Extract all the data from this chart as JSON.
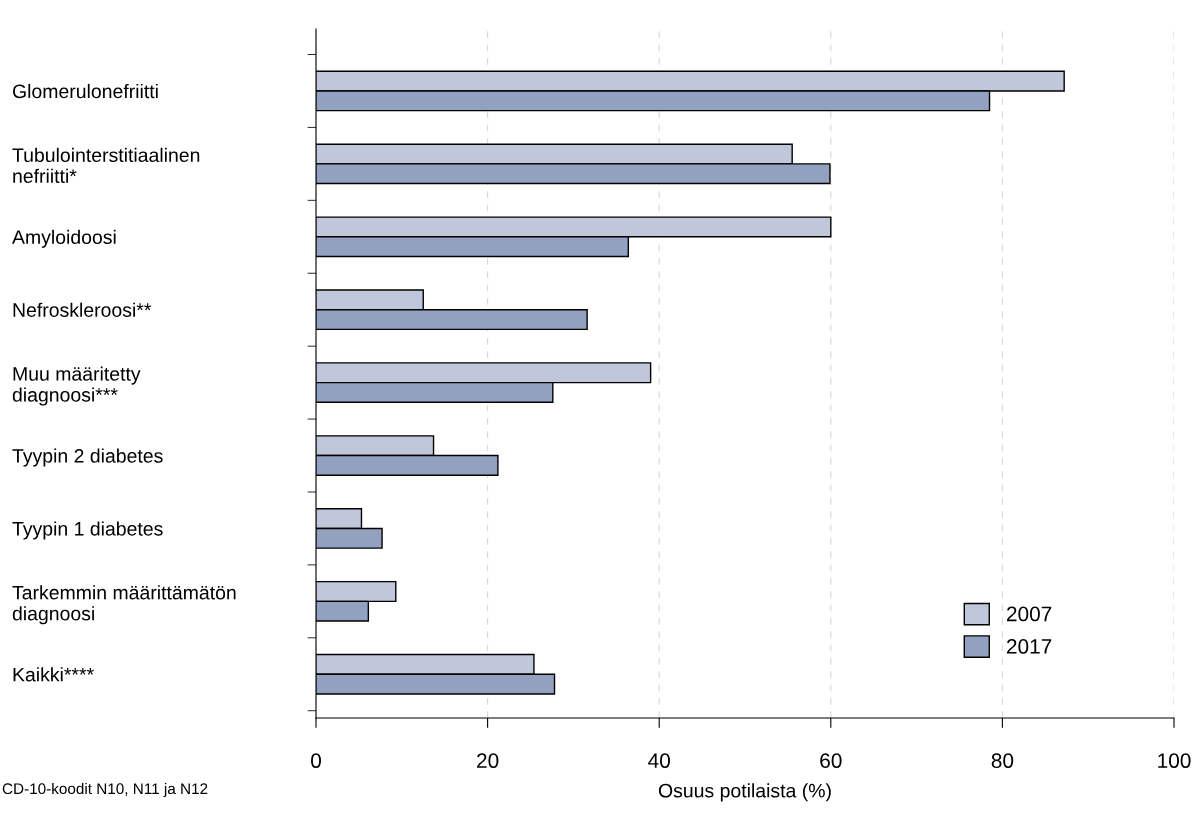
{
  "chart_data": {
    "type": "bar",
    "orientation": "horizontal",
    "xlabel": "Osuus potilaista (%)",
    "categories": [
      "Glomerulonefriitti",
      "Tubulointerstitiaalinen\nnefriitti*",
      "Amyloidoosi",
      "Nefroskleroosi**",
      "Muu määritetty\ndiagnoosi***",
      "Tyypin 2 diabetes",
      "Tyypin 1 diabetes",
      "Tarkemmin määrittämätön\ndiagnoosi",
      "Kaikki****"
    ],
    "series": [
      {
        "name": "2007",
        "color": "#c1c7da",
        "values": [
          87.2,
          55.5,
          60,
          12.5,
          39.0,
          13.7,
          5.3,
          9.3,
          25.4
        ]
      },
      {
        "name": "2017",
        "color": "#93a1c1",
        "values": [
          78.5,
          59.9,
          36.4,
          31.6,
          27.6,
          21.2,
          7.7,
          6.1,
          27.8
        ]
      }
    ],
    "xlim": [
      0,
      100
    ],
    "xticks": [
      0,
      20,
      40,
      60,
      80,
      100
    ],
    "grid": "x",
    "legend": "bottom right",
    "annotations": [
      "CD-10-koodit N10, N11 ja N12"
    ]
  }
}
